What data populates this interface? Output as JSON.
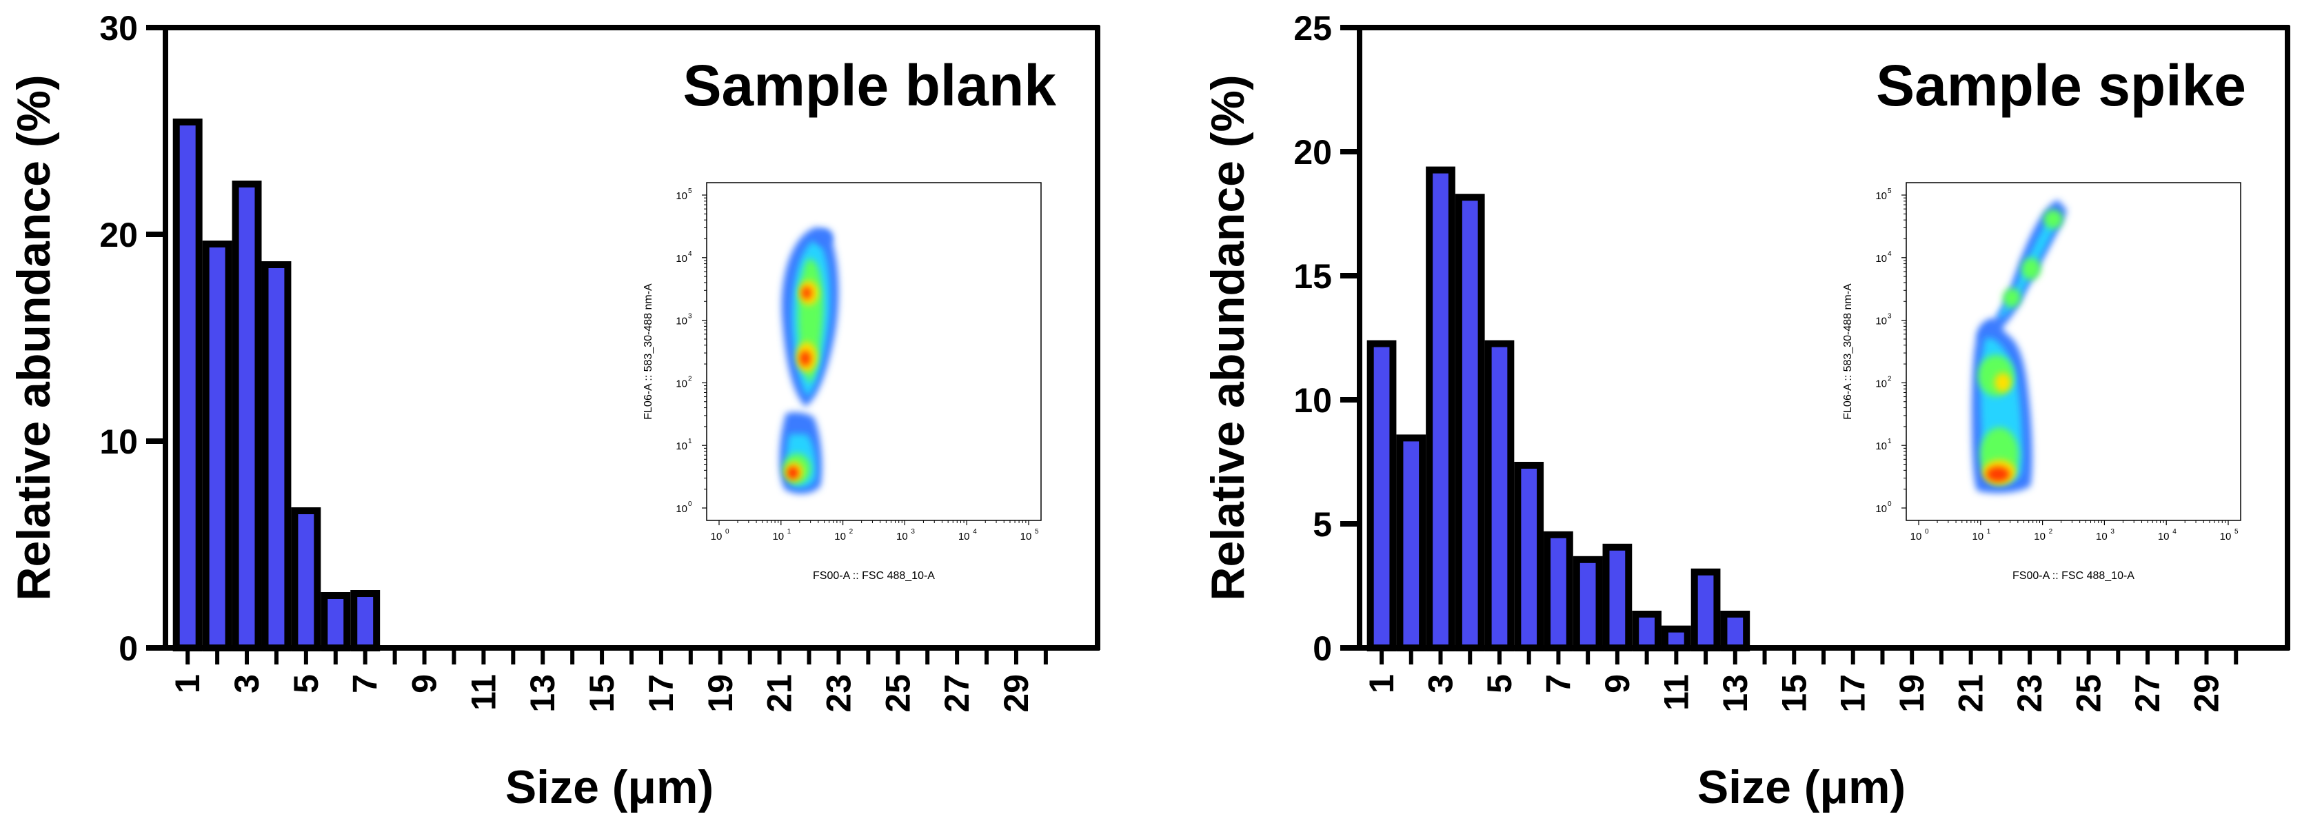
{
  "colors": {
    "bar_fill": "#4a4af0",
    "bar_edge": "#000000",
    "axis": "#000000",
    "background": "#ffffff"
  },
  "chart_data": [
    {
      "type": "bar",
      "title": "Sample blank",
      "xlabel": "Size (μm)",
      "ylabel": "Relative abundance (%)",
      "ylim": [
        0,
        30
      ],
      "yticks": [
        0,
        10,
        20,
        30
      ],
      "categories": [
        1,
        2,
        3,
        4,
        5,
        6,
        7,
        8,
        9,
        10,
        11,
        12,
        13,
        14,
        15,
        16,
        17,
        18,
        19,
        20,
        21,
        22,
        23,
        24,
        25,
        26,
        27,
        28,
        29,
        30
      ],
      "xtick_labels": [
        "1",
        "3",
        "5",
        "7",
        "9",
        "11",
        "13",
        "15",
        "17",
        "19",
        "21",
        "23",
        "25",
        "27",
        "29"
      ],
      "values": [
        25.6,
        19.7,
        22.6,
        18.7,
        6.8,
        2.7,
        2.8,
        0,
        0,
        0,
        0,
        0,
        0,
        0,
        0,
        0,
        0,
        0,
        0,
        0,
        0,
        0,
        0,
        0,
        0,
        0,
        0,
        0,
        0,
        0
      ],
      "inset": {
        "type": "density-scatter",
        "xlabel": "FS00-A :: FSC 488_10-A",
        "ylabel": "FL06-A :: 583_30-488 nm-A",
        "x_scale": "log",
        "y_scale": "log",
        "xlim": [
          1,
          100000
        ],
        "ylim": [
          1,
          100000
        ],
        "ticks": [
          "10",
          "10",
          "10",
          "10",
          "10",
          "10"
        ],
        "tick_exponents": [
          "0",
          "1",
          "2",
          "3",
          "4",
          "5"
        ]
      }
    },
    {
      "type": "bar",
      "title": "Sample spike",
      "xlabel": "Size (μm)",
      "ylabel": "Relative abundance (%)",
      "ylim": [
        0,
        25
      ],
      "yticks": [
        0,
        5,
        10,
        15,
        20,
        25
      ],
      "categories": [
        1,
        2,
        3,
        4,
        5,
        6,
        7,
        8,
        9,
        10,
        11,
        12,
        13,
        14,
        15,
        16,
        17,
        18,
        19,
        20,
        21,
        22,
        23,
        24,
        25,
        26,
        27,
        28,
        29,
        30
      ],
      "xtick_labels": [
        "1",
        "3",
        "5",
        "7",
        "9",
        "11",
        "13",
        "15",
        "17",
        "19",
        "21",
        "23",
        "25",
        "27",
        "29"
      ],
      "values": [
        12.4,
        8.6,
        19.4,
        18.3,
        12.4,
        7.5,
        4.7,
        3.7,
        4.2,
        1.5,
        0.9,
        3.2,
        1.5,
        0,
        0,
        0,
        0,
        0,
        0,
        0,
        0,
        0,
        0,
        0,
        0,
        0,
        0,
        0,
        0,
        0
      ],
      "inset": {
        "type": "density-scatter",
        "xlabel": "FS00-A :: FSC 488_10-A",
        "ylabel": "FL06-A :: 583_30-488 nm-A",
        "x_scale": "log",
        "y_scale": "log",
        "xlim": [
          1,
          100000
        ],
        "ylim": [
          1,
          100000
        ],
        "ticks": [
          "10",
          "10",
          "10",
          "10",
          "10",
          "10"
        ],
        "tick_exponents": [
          "0",
          "1",
          "2",
          "3",
          "4",
          "5"
        ]
      }
    }
  ]
}
